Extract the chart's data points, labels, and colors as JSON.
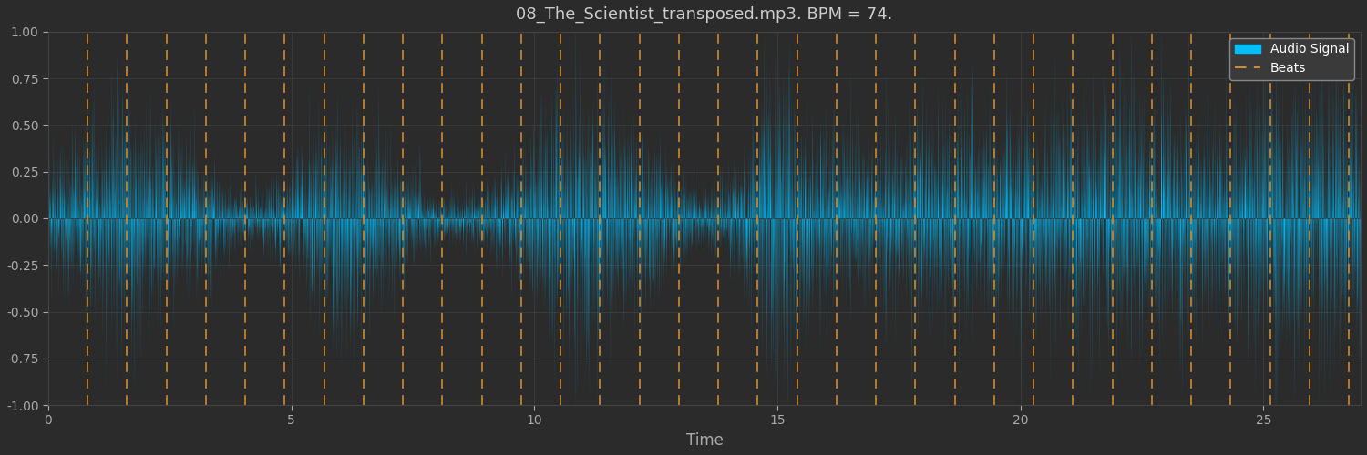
{
  "title": "08_The_Scientist_transposed.mp3. BPM = 74.",
  "xlabel": "Time",
  "ylabel": "",
  "bpm": 74,
  "duration": 27.0,
  "xlim": [
    0,
    27
  ],
  "ylim": [
    -1.0,
    1.0
  ],
  "yticks": [
    -1.0,
    -0.75,
    -0.5,
    -0.25,
    0.0,
    0.25,
    0.5,
    0.75,
    1.0
  ],
  "xticks": [
    0,
    5,
    10,
    15,
    20,
    25
  ],
  "bg_color": "#2b2b2b",
  "axes_bg_color": "#2b2b2b",
  "signal_color": "#00bfff",
  "beat_color": "#d48c2a",
  "grid_color": "#444444",
  "title_color": "#cccccc",
  "tick_color": "#aaaaaa",
  "legend_bg": "#3a3a3a",
  "legend_edge": "#888888",
  "signal_alpha": 1.0,
  "beat_alpha": 0.9,
  "num_bars": 1400,
  "seed": 42,
  "envelope_shape": [
    [
      0.0,
      0.3
    ],
    [
      0.8,
      0.55
    ],
    [
      1.5,
      0.68
    ],
    [
      2.0,
      0.62
    ],
    [
      2.5,
      0.5
    ],
    [
      3.0,
      0.42
    ],
    [
      3.4,
      0.28
    ],
    [
      3.8,
      0.18
    ],
    [
      4.2,
      0.16
    ],
    [
      4.6,
      0.2
    ],
    [
      5.0,
      0.32
    ],
    [
      5.4,
      0.48
    ],
    [
      5.8,
      0.62
    ],
    [
      6.2,
      0.68
    ],
    [
      6.6,
      0.55
    ],
    [
      7.0,
      0.42
    ],
    [
      7.4,
      0.3
    ],
    [
      7.8,
      0.18
    ],
    [
      8.2,
      0.14
    ],
    [
      8.6,
      0.16
    ],
    [
      9.0,
      0.2
    ],
    [
      9.4,
      0.3
    ],
    [
      9.8,
      0.42
    ],
    [
      10.2,
      0.58
    ],
    [
      10.8,
      0.7
    ],
    [
      11.4,
      0.72
    ],
    [
      11.8,
      0.65
    ],
    [
      12.2,
      0.52
    ],
    [
      12.6,
      0.4
    ],
    [
      13.0,
      0.3
    ],
    [
      13.2,
      0.22
    ],
    [
      13.5,
      0.18
    ],
    [
      13.8,
      0.2
    ],
    [
      14.2,
      0.32
    ],
    [
      14.5,
      0.52
    ],
    [
      14.8,
      0.82
    ],
    [
      15.0,
      0.9
    ],
    [
      15.3,
      0.75
    ],
    [
      15.6,
      0.6
    ],
    [
      16.0,
      0.52
    ],
    [
      16.5,
      0.48
    ],
    [
      17.0,
      0.42
    ],
    [
      17.5,
      0.5
    ],
    [
      18.0,
      0.55
    ],
    [
      18.5,
      0.58
    ],
    [
      19.0,
      0.6
    ],
    [
      19.5,
      0.58
    ],
    [
      20.0,
      0.55
    ],
    [
      20.5,
      0.58
    ],
    [
      21.0,
      0.62
    ],
    [
      21.5,
      0.68
    ],
    [
      22.0,
      0.72
    ],
    [
      22.5,
      0.7
    ],
    [
      23.0,
      0.65
    ],
    [
      23.5,
      0.62
    ],
    [
      24.0,
      0.58
    ],
    [
      24.5,
      0.68
    ],
    [
      25.0,
      0.75
    ],
    [
      25.5,
      0.8
    ],
    [
      26.0,
      0.78
    ],
    [
      26.5,
      0.72
    ],
    [
      27.0,
      0.68
    ]
  ]
}
